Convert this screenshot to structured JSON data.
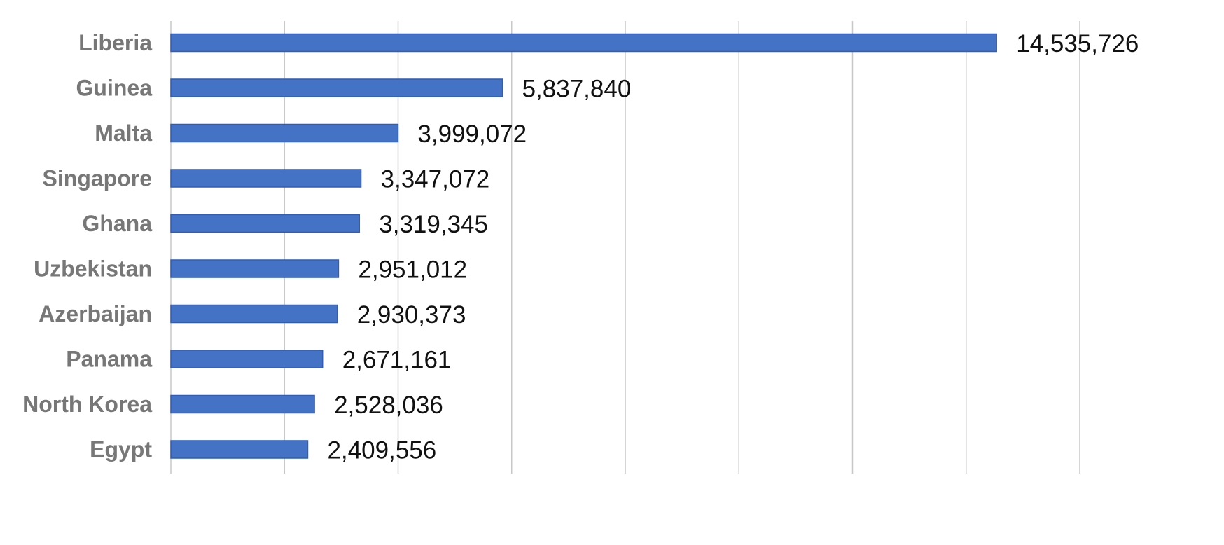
{
  "chart_data": {
    "type": "bar",
    "orientation": "horizontal",
    "categories": [
      "Liberia",
      "Guinea",
      "Malta",
      "Singapore",
      "Ghana",
      "Uzbekistan",
      "Azerbaijan",
      "Panama",
      "North Korea",
      "Egypt"
    ],
    "values": [
      14535726,
      5837840,
      3999072,
      3347072,
      3319345,
      2951012,
      2930373,
      2671161,
      2528036,
      2409556
    ],
    "data_labels": [
      "14,535,726",
      "5,837,840",
      "3,999,072",
      "3,347,072",
      "3,319,345",
      "2,951,012",
      "2,930,373",
      "2,671,161",
      "2,528,036",
      "2,409,556"
    ],
    "xlim": [
      0,
      16000000
    ],
    "x_gridline_step": 2000000,
    "x_tick_labels_visible": false,
    "grid": "vertical",
    "legend": "none",
    "bar_color": "#4472c4",
    "title": "",
    "xlabel": "",
    "ylabel": ""
  }
}
